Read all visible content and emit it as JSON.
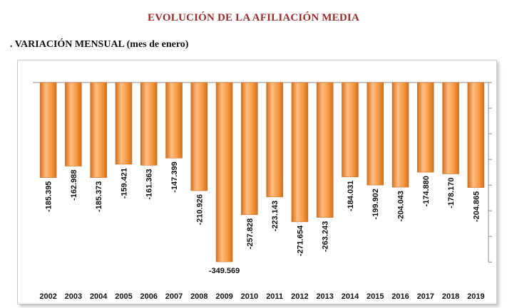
{
  "page": {
    "title": "EVOLUCIÓN DE LA AFILIACIÓN MEDIA",
    "subtitle": ". VARIACIÓN MENSUAL (mes de enero)"
  },
  "colors": {
    "title": "#9c2a2a",
    "bar_light": "#ffbe82",
    "bar_mid": "#f59840",
    "bar_dark": "#d2701c"
  },
  "chart_data": {
    "type": "bar",
    "title": "",
    "xlabel": "",
    "ylabel": "",
    "grid": false,
    "legend": "none",
    "ylim": [
      -350000,
      0
    ],
    "categories": [
      "2002",
      "2003",
      "2004",
      "2005",
      "2006",
      "2007",
      "2008",
      "2009",
      "2010",
      "2011",
      "2012",
      "2013",
      "2014",
      "2015",
      "2016",
      "2017",
      "2018",
      "2019"
    ],
    "values": [
      -185395,
      -162988,
      -185373,
      -159421,
      -161363,
      -147399,
      -210926,
      -349569,
      -257828,
      -223143,
      -271654,
      -263243,
      -184031,
      -199902,
      -204043,
      -174880,
      -178170,
      -204865
    ],
    "value_labels": [
      "-185.395",
      "-162.988",
      "-185.373",
      "-159.421",
      "-161.363",
      "-147.399",
      "-210.926",
      "-349.569",
      "-257.828",
      "-223.143",
      "-271.654",
      "-263.243",
      "-184.031",
      "-199.902",
      "-204.043",
      "-174.880",
      "-178.170",
      "-204.865"
    ]
  }
}
